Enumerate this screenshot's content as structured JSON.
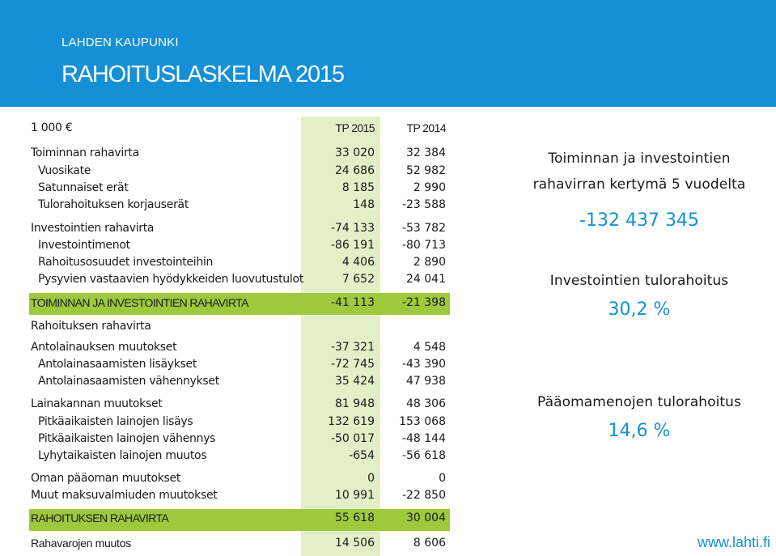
{
  "header": {
    "org": "LAHDEN KAUPUNKI",
    "title": "RAHOITUSLASKELMA 2015"
  },
  "table": {
    "unit": "1 000 €",
    "col1": "TP 2015",
    "col2": "TP 2014",
    "rows": [
      {
        "label": "Toiminnan rahavirta",
        "v1": "33 020",
        "v2": "32 384"
      },
      {
        "label": "Vuosikate",
        "v1": "24 686",
        "v2": "52 982"
      },
      {
        "label": "Satunnaiset erät",
        "v1": "8 185",
        "v2": "2 990"
      },
      {
        "label": "Tulorahoituksen korjauserät",
        "v1": "148",
        "v2": "-23 588"
      },
      {
        "label": "Investointien rahavirta",
        "v1": "-74 133",
        "v2": "-53 782"
      },
      {
        "label": "Investointimenot",
        "v1": "-86 191",
        "v2": "-80 713"
      },
      {
        "label": "Rahoitusosuudet investointeihin",
        "v1": "4 406",
        "v2": "2 890"
      },
      {
        "label": "Pysyvien vastaavien hyödykkeiden luovutustulot",
        "v1": "7 652",
        "v2": "24 041"
      },
      {
        "label": "TOIMINNAN JA INVESTOINTIEN RAHAVIRTA",
        "v1": "-41 113",
        "v2": "-21 398"
      },
      {
        "label": "Rahoituksen rahavirta",
        "v1": "",
        "v2": ""
      },
      {
        "label": "Antolainauksen muutokset",
        "v1": "-37 321",
        "v2": "4 548"
      },
      {
        "label": "Antolainasaamisten lisäykset",
        "v1": "-72 745",
        "v2": "-43 390"
      },
      {
        "label": "Antolainasaamisten vähennykset",
        "v1": "35 424",
        "v2": "47 938"
      },
      {
        "label": "Lainakannan muutokset",
        "v1": "81 948",
        "v2": "48 306"
      },
      {
        "label": "Pitkäaikaisten lainojen lisäys",
        "v1": "132 619",
        "v2": "153 068"
      },
      {
        "label": "Pitkäaikaisten lainojen vähennys",
        "v1": "-50 017",
        "v2": "-48 144"
      },
      {
        "label": "Lyhytaikaisten lainojen muutos",
        "v1": "-654",
        "v2": "-56 618"
      },
      {
        "label": "Oman pääoman muutokset",
        "v1": "0",
        "v2": "0"
      },
      {
        "label": "Muut maksuvalmiuden muutokset",
        "v1": "10 991",
        "v2": "-22 850"
      },
      {
        "label": "RAHOITUKSEN RAHAVIRTA",
        "v1": "55 618",
        "v2": "30 004"
      },
      {
        "label": "Rahavarojen muutos",
        "v1": "14 506",
        "v2": "8 606"
      }
    ]
  },
  "side": {
    "line1": "Toiminnan ja investointien",
    "line2": "rahavirran kertymä 5 vuodelta",
    "value1": "-132 437 345",
    "label2": "Investointien tulorahoitus",
    "value2": "30,2 %",
    "label3": "Pääomamenojen tulorahoitus",
    "value3": "14,6 %"
  },
  "footer": {
    "url": "www.lahti.fi"
  },
  "colors": {
    "brand_blue": "#1590d6",
    "band_green": "#9ec93d",
    "column_highlight": "#e2f0c7"
  }
}
